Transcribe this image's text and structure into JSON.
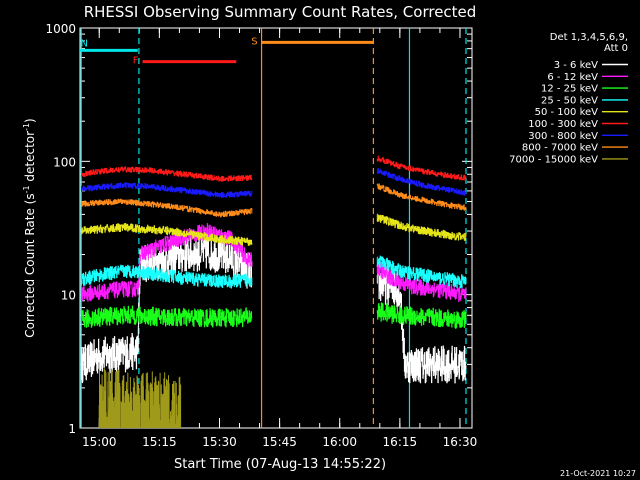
{
  "chart_data": {
    "type": "line",
    "title": "RHESSI Observing Summary Count Rates, Corrected",
    "xlabel": "Start Time (07-Aug-13 14:55:22)",
    "ylabel_main": "Corrected Count Rate (s",
    "ylabel_sup1": "-1",
    "ylabel_mid": " detector",
    "ylabel_sup2": "-1",
    "ylabel_end": ")",
    "yscale": "log",
    "ylim": [
      1,
      1000
    ],
    "xlim": [
      14.92,
      16.55
    ],
    "x_ticks": [
      15.0,
      15.25,
      15.5,
      15.75,
      16.0,
      16.25,
      16.5
    ],
    "x_tick_labels": [
      "15:00",
      "15:15",
      "15:30",
      "15:45",
      "16:00",
      "16:15",
      "16:30"
    ],
    "y_ticks": [
      1,
      10,
      100,
      1000
    ],
    "y_tick_labels": [
      "1",
      "10",
      "100",
      "1000"
    ],
    "legend_header": [
      "Det 1,3,4,5,6,9,",
      "Att 0"
    ],
    "legend_position": "top-right",
    "timestamp": "21-Oct-2021 10:27",
    "flag_bars": [
      {
        "label": "N",
        "x0": 14.92,
        "x1": 15.16,
        "color": "#00e5e5",
        "level": 680
      },
      {
        "label": "F",
        "x0": 15.18,
        "x1": 15.57,
        "color": "#ff1a1a",
        "level": 560
      },
      {
        "label": "S",
        "x0": 15.675,
        "x1": 16.14,
        "color": "#ff8c1a",
        "level": 780
      }
    ],
    "vlines": [
      {
        "x": 14.925,
        "color": "#00e5e5",
        "style": "solid"
      },
      {
        "x": 15.165,
        "color": "#00e5e5",
        "style": "dashed"
      },
      {
        "x": 15.675,
        "color": "#ff8c1a",
        "style": "solid"
      },
      {
        "x": 16.14,
        "color": "#ff8c1a",
        "style": "dashed"
      },
      {
        "x": 16.29,
        "color": "#00e5e5",
        "style": "solid"
      },
      {
        "x": 16.525,
        "color": "#00e5e5",
        "style": "dashed"
      }
    ],
    "segments": [
      [
        14.925,
        15.635
      ],
      [
        16.155,
        16.525
      ]
    ],
    "series": [
      {
        "name": "3 - 6 keV",
        "color": "#ffffff",
        "points": [
          [
            14.93,
            3.0
          ],
          [
            15.0,
            3.5
          ],
          [
            15.1,
            3.6
          ],
          [
            15.16,
            3.8
          ],
          [
            15.17,
            17
          ],
          [
            15.25,
            18
          ],
          [
            15.35,
            20
          ],
          [
            15.45,
            21
          ],
          [
            15.55,
            19
          ],
          [
            15.62,
            15
          ],
          [
            16.16,
            12
          ],
          [
            16.25,
            11
          ],
          [
            16.27,
            3.0
          ],
          [
            16.35,
            3.0
          ],
          [
            16.45,
            3.0
          ],
          [
            16.52,
            3.0
          ]
        ],
        "noise": 0.14
      },
      {
        "name": "6 - 12 keV",
        "color": "#ff1aff",
        "points": [
          [
            14.93,
            10
          ],
          [
            15.0,
            10.5
          ],
          [
            15.1,
            11
          ],
          [
            15.16,
            11
          ],
          [
            15.17,
            20
          ],
          [
            15.25,
            23
          ],
          [
            15.35,
            27
          ],
          [
            15.45,
            30
          ],
          [
            15.55,
            26
          ],
          [
            15.62,
            18
          ],
          [
            16.16,
            16
          ],
          [
            16.22,
            13
          ],
          [
            16.3,
            11.5
          ],
          [
            16.4,
            11
          ],
          [
            16.52,
            10
          ]
        ],
        "noise": 0.06
      },
      {
        "name": "12 - 25 keV",
        "color": "#1aff1a",
        "points": [
          [
            14.93,
            6.5
          ],
          [
            15.0,
            6.8
          ],
          [
            15.1,
            7.0
          ],
          [
            15.16,
            7.0
          ],
          [
            15.25,
            6.8
          ],
          [
            15.4,
            6.7
          ],
          [
            15.55,
            6.7
          ],
          [
            15.62,
            6.8
          ],
          [
            16.16,
            7.5
          ],
          [
            16.25,
            7.0
          ],
          [
            16.35,
            6.8
          ],
          [
            16.45,
            6.6
          ],
          [
            16.52,
            6.5
          ]
        ],
        "noise": 0.07
      },
      {
        "name": "25 - 50 keV",
        "color": "#1affff",
        "points": [
          [
            14.93,
            13
          ],
          [
            15.0,
            14
          ],
          [
            15.1,
            15
          ],
          [
            15.16,
            15
          ],
          [
            15.25,
            14
          ],
          [
            15.4,
            13
          ],
          [
            15.55,
            12.5
          ],
          [
            15.62,
            13
          ],
          [
            16.16,
            18
          ],
          [
            16.25,
            15
          ],
          [
            16.35,
            14
          ],
          [
            16.45,
            13
          ],
          [
            16.52,
            12.5
          ]
        ],
        "noise": 0.05
      },
      {
        "name": "50 - 100 keV",
        "color": "#e5e51a",
        "points": [
          [
            14.93,
            30
          ],
          [
            15.0,
            31
          ],
          [
            15.1,
            32
          ],
          [
            15.2,
            31
          ],
          [
            15.3,
            30
          ],
          [
            15.4,
            28
          ],
          [
            15.5,
            26
          ],
          [
            15.62,
            25
          ],
          [
            16.16,
            38
          ],
          [
            16.25,
            33
          ],
          [
            16.35,
            30
          ],
          [
            16.45,
            28
          ],
          [
            16.52,
            27
          ]
        ],
        "noise": 0.03
      },
      {
        "name": "100 - 300 keV",
        "color": "#ff1a1a",
        "points": [
          [
            14.93,
            80
          ],
          [
            15.0,
            84
          ],
          [
            15.1,
            87
          ],
          [
            15.2,
            86
          ],
          [
            15.3,
            82
          ],
          [
            15.4,
            78
          ],
          [
            15.5,
            74
          ],
          [
            15.62,
            75
          ],
          [
            16.16,
            105
          ],
          [
            16.25,
            92
          ],
          [
            16.35,
            84
          ],
          [
            16.45,
            78
          ],
          [
            16.52,
            75
          ]
        ],
        "noise": 0.02
      },
      {
        "name": "300 - 800 keV",
        "color": "#1a1aff",
        "points": [
          [
            14.93,
            62
          ],
          [
            15.0,
            64
          ],
          [
            15.1,
            66
          ],
          [
            15.2,
            65
          ],
          [
            15.3,
            62
          ],
          [
            15.4,
            59
          ],
          [
            15.5,
            56
          ],
          [
            15.62,
            57
          ],
          [
            16.16,
            85
          ],
          [
            16.25,
            74
          ],
          [
            16.35,
            66
          ],
          [
            16.45,
            61
          ],
          [
            16.52,
            58
          ]
        ],
        "noise": 0.02
      },
      {
        "name": "800 - 7000 keV",
        "color": "#ff8c1a",
        "points": [
          [
            14.93,
            48
          ],
          [
            15.0,
            49
          ],
          [
            15.1,
            50
          ],
          [
            15.2,
            48
          ],
          [
            15.3,
            46
          ],
          [
            15.4,
            43
          ],
          [
            15.5,
            40
          ],
          [
            15.62,
            42
          ],
          [
            16.16,
            65
          ],
          [
            16.25,
            56
          ],
          [
            16.35,
            51
          ],
          [
            16.45,
            47
          ],
          [
            16.52,
            45
          ]
        ],
        "noise": 0.02
      },
      {
        "name": "7000 - 15000 keV",
        "color": "#a09a1a",
        "points": [
          [
            15.0,
            1.6
          ],
          [
            15.1,
            1.6
          ],
          [
            15.2,
            1.5
          ],
          [
            15.3,
            1.5
          ],
          [
            15.34,
            1.4
          ]
        ],
        "noise": 0.25,
        "clip_x": [
          15.0,
          15.34
        ],
        "floor": 1
      }
    ]
  }
}
